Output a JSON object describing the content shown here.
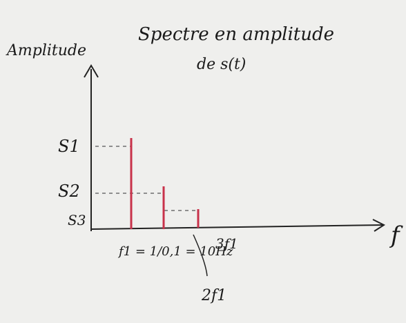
{
  "y_axis_label": "Amplitude",
  "title": {
    "line1": "Spectre en amplitude",
    "line2": "de s(t)"
  },
  "y_labels": [
    "S1",
    "S2",
    "S3"
  ],
  "x_labels": [
    "f1 = 1/0,1 = 10Hz",
    "2f1",
    "3f1"
  ],
  "x_axis_label": "f"
}
